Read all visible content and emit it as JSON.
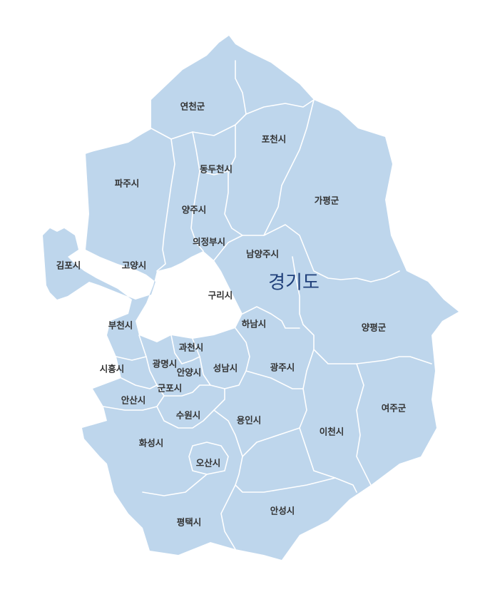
{
  "map": {
    "title": "경기도",
    "colors": {
      "land": "#bed6ec",
      "border": "#ffffff",
      "label": "#333333",
      "title": "#1f3f7a"
    },
    "regions": {
      "yeoncheon": "연천군",
      "pocheon": "포천시",
      "dongducheon": "동두천시",
      "paju": "파주시",
      "yangju": "양주시",
      "gapyeong": "가평군",
      "uijeongbu": "의정부시",
      "namyangju": "남양주시",
      "gimpo": "김포시",
      "goyang": "고양시",
      "guri": "구리시",
      "bucheon": "부천시",
      "hanam": "하남시",
      "yangpyeong": "양평군",
      "gwacheon": "과천시",
      "siheung": "시흥시",
      "gwangmyeong": "광명시",
      "anyang": "안양시",
      "seongnam": "성남시",
      "gwangju": "광주시",
      "gunpo": "군포시",
      "ansan": "안산시",
      "yeoju": "여주군",
      "suwon": "수원시",
      "yongin": "용인시",
      "icheon": "이천시",
      "hwaseong": "화성시",
      "osan": "오산시",
      "anseong": "안성시",
      "pyeongtaek": "평택시"
    }
  }
}
